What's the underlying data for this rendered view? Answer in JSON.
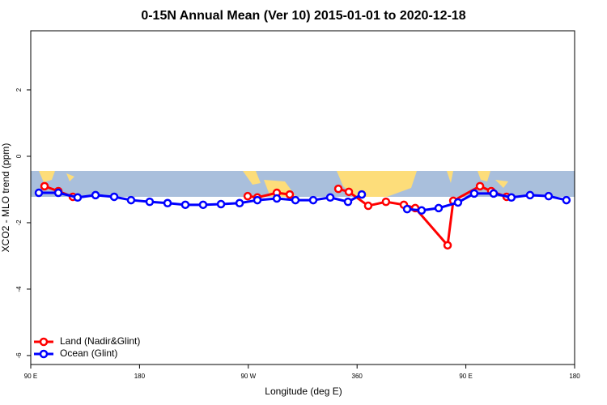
{
  "chart_data": {
    "type": "line",
    "title": "0-15N Annual Mean (Ver 10)   2015-01-01 to 2020-12-18",
    "x_label": "Longitude (deg E)",
    "y_label": "XCO2 - MLO trend (ppm)",
    "xlim": [
      90,
      540
    ],
    "xticks": [
      {
        "value": 90,
        "label": "90 E"
      },
      180,
      {
        "value": 270,
        "label": "90 W"
      },
      360,
      {
        "value": 450,
        "label": "90 E"
      },
      {
        "value": 540,
        "label": "180"
      }
    ],
    "ylim": [
      -6.27,
      3.78
    ],
    "yticks": [
      -6,
      -4,
      -2,
      0,
      2
    ],
    "legend": "bottom-left",
    "series": [
      {
        "name": "Land (Nadir&Glint)",
        "color": "#ff0000",
        "x": [
          101.4,
          112.8,
          124.8,
          null,
          269.5,
          277.5,
          293.6,
          304.3,
          null,
          344.5,
          353.2,
          369.2,
          383.9,
          398.7,
          408.1,
          434.9,
          439.6,
          461.7,
          471,
          483.7
        ],
        "values": [
          -0.9,
          -1.05,
          -1.22,
          null,
          -1.2,
          -1.24,
          -1.1,
          -1.15,
          null,
          -0.98,
          -1.07,
          -1.49,
          -1.37,
          -1.46,
          -1.56,
          -2.68,
          -1.34,
          -0.9,
          -1.05,
          -1.22
        ]
      },
      {
        "name": "Ocean (Glint)",
        "color": "#0000ff",
        "x": [
          96.7,
          112.8,
          128.8,
          143.6,
          159,
          173,
          188.4,
          203.2,
          217.9,
          232.6,
          247.4,
          262.8,
          277.5,
          293.6,
          309,
          323.7,
          337.8,
          352.5,
          363.9,
          null,
          401.4,
          413.4,
          427.5,
          443.5,
          456.9,
          473,
          487.7,
          503.1,
          518.5,
          533.2
        ],
        "values": [
          -1.1,
          -1.1,
          -1.24,
          -1.17,
          -1.22,
          -1.32,
          -1.37,
          -1.41,
          -1.46,
          -1.46,
          -1.44,
          -1.41,
          -1.32,
          -1.27,
          -1.32,
          -1.32,
          -1.24,
          -1.37,
          -1.15,
          null,
          -1.59,
          -1.63,
          -1.56,
          -1.39,
          -1.12,
          -1.12,
          -1.24,
          -1.17,
          -1.2,
          -1.32
        ]
      }
    ]
  }
}
